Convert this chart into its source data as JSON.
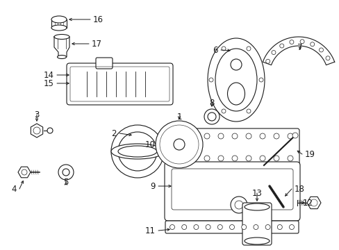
{
  "bg_color": "#ffffff",
  "line_color": "#1a1a1a",
  "text_color": "#1a1a1a",
  "fig_width": 4.89,
  "fig_height": 3.6,
  "dpi": 100
}
